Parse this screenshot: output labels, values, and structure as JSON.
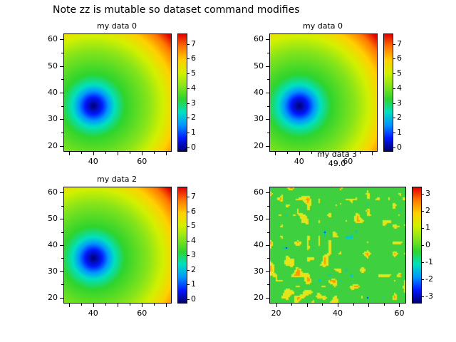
{
  "figure": {
    "title": "Note zz is mutable so dataset command modifies",
    "background": "#ffffff"
  },
  "colormap": {
    "name": "jet",
    "stops_low_to_high": [
      "#000070",
      "#0018ff",
      "#0096ff",
      "#00e0c0",
      "#2ed42e",
      "#86e41a",
      "#d2f000",
      "#ffd000",
      "#ff7800",
      "#e00000"
    ],
    "radial_stops_pct": [
      0,
      8,
      14,
      20,
      30,
      52,
      66,
      78,
      89,
      98
    ]
  },
  "chart_data": [
    {
      "type": "heatmap",
      "title": "my data 0",
      "pattern": "smooth-radial-min",
      "xlim": [
        27.8,
        72.2
      ],
      "ylim": [
        17.8,
        62.2
      ],
      "x_major_ticks": [
        40,
        60
      ],
      "y_major_ticks": [
        20,
        30,
        40,
        50,
        60
      ],
      "min_at": {
        "x": 40,
        "y": 35
      },
      "value_range": [
        0,
        7.5
      ],
      "colorbar": {
        "lim": [
          -0.3,
          7.7
        ],
        "ticks": [
          7,
          6,
          5,
          4,
          3,
          2,
          1,
          0
        ]
      },
      "description": "Smooth bowl-shaped field, minimum (dark blue) near (40,35), rising to red at top-right corner"
    },
    {
      "type": "heatmap",
      "title": "my data 0",
      "pattern": "smooth-radial-min",
      "xlim": [
        27.8,
        72.2
      ],
      "ylim": [
        17.8,
        62.2
      ],
      "x_major_ticks": [
        40,
        60
      ],
      "y_major_ticks": [
        20,
        30,
        40,
        50,
        60
      ],
      "min_at": {
        "x": 40,
        "y": 35
      },
      "value_range": [
        0,
        7.5
      ],
      "colorbar": {
        "lim": [
          -0.3,
          7.7
        ],
        "ticks": [
          7,
          6,
          5,
          4,
          3,
          2,
          1,
          0
        ]
      },
      "description": "Same smooth bowl-shaped field as top-left subplot"
    },
    {
      "type": "heatmap",
      "title": "my data 2",
      "pattern": "smooth-radial-min",
      "xlim": [
        27.8,
        72.2
      ],
      "ylim": [
        17.8,
        62.2
      ],
      "x_major_ticks": [
        40,
        60
      ],
      "y_major_ticks": [
        20,
        30,
        40,
        50,
        60
      ],
      "min_at": {
        "x": 40,
        "y": 35
      },
      "value_range": [
        0,
        7.5
      ],
      "colorbar": {
        "lim": [
          -0.3,
          7.7
        ],
        "ticks": [
          7,
          6,
          5,
          4,
          3,
          2,
          1,
          0
        ]
      },
      "description": "Same smooth bowl-shaped field as top-left subplot"
    },
    {
      "type": "heatmap",
      "title": "my data 3",
      "subtitle": "49.0",
      "pattern": "random-noise",
      "xlim": [
        17.8,
        62.2
      ],
      "ylim": [
        17.8,
        62.2
      ],
      "x_major_ticks": [
        20,
        40,
        60
      ],
      "y_major_ticks": [
        20,
        30,
        40,
        50,
        60
      ],
      "value_range": [
        -3,
        3
      ],
      "colorbar": {
        "lim": [
          -3.4,
          3.4
        ],
        "ticks": [
          3,
          2,
          1,
          0,
          -1,
          -2,
          -3
        ]
      },
      "description": "Random noise field, mostly green with yellow/orange speckled contours and occasional blue and red dots"
    }
  ]
}
